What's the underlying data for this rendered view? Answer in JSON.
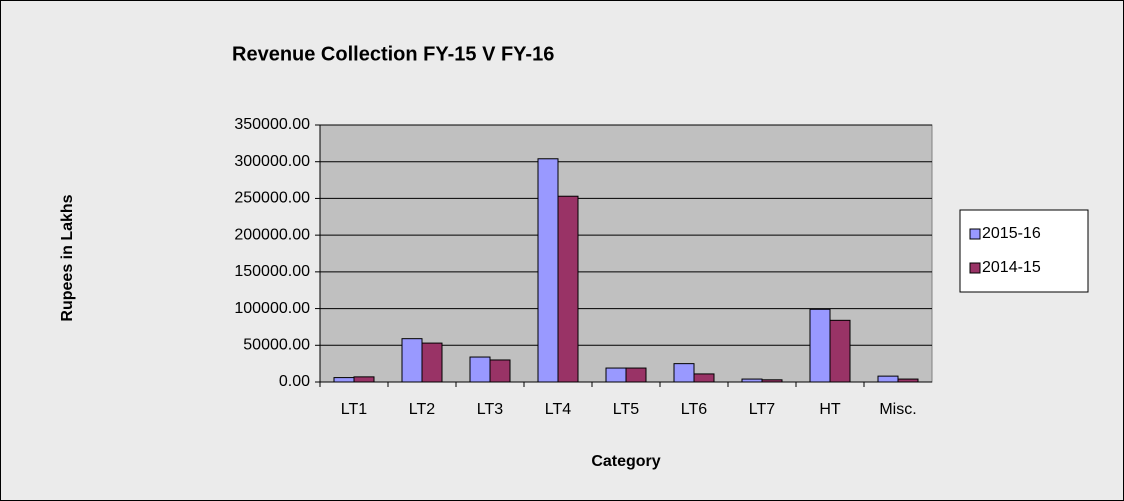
{
  "chart_data": {
    "type": "bar",
    "title": "Revenue Collection FY-15 V FY-16",
    "x_label": "Category",
    "y_label": "Rupees in Lakhs",
    "categories": [
      "LT1",
      "LT2",
      "LT3",
      "LT4",
      "LT5",
      "LT6",
      "LT7",
      "HT",
      "Misc."
    ],
    "series": [
      {
        "name": "2015-16",
        "color": "#9999ff",
        "values": [
          6000,
          59000,
          34000,
          304000,
          19000,
          25000,
          4000,
          99000,
          8000
        ]
      },
      {
        "name": "2014-15",
        "color": "#993366",
        "values": [
          7000,
          53000,
          30000,
          253000,
          19000,
          11000,
          3000,
          84000,
          4000
        ]
      }
    ],
    "ylim": [
      0,
      350000
    ],
    "yticks": [
      {
        "value": 0,
        "label": "0.00"
      },
      {
        "value": 50000,
        "label": "50000.00"
      },
      {
        "value": 100000,
        "label": "100000.00"
      },
      {
        "value": 150000,
        "label": "150000.00"
      },
      {
        "value": 200000,
        "label": "200000.00"
      },
      {
        "value": 250000,
        "label": "250000.00"
      },
      {
        "value": 300000,
        "label": "300000.00"
      },
      {
        "value": 350000,
        "label": "350000.00"
      }
    ],
    "grid": true,
    "legend": "right"
  }
}
